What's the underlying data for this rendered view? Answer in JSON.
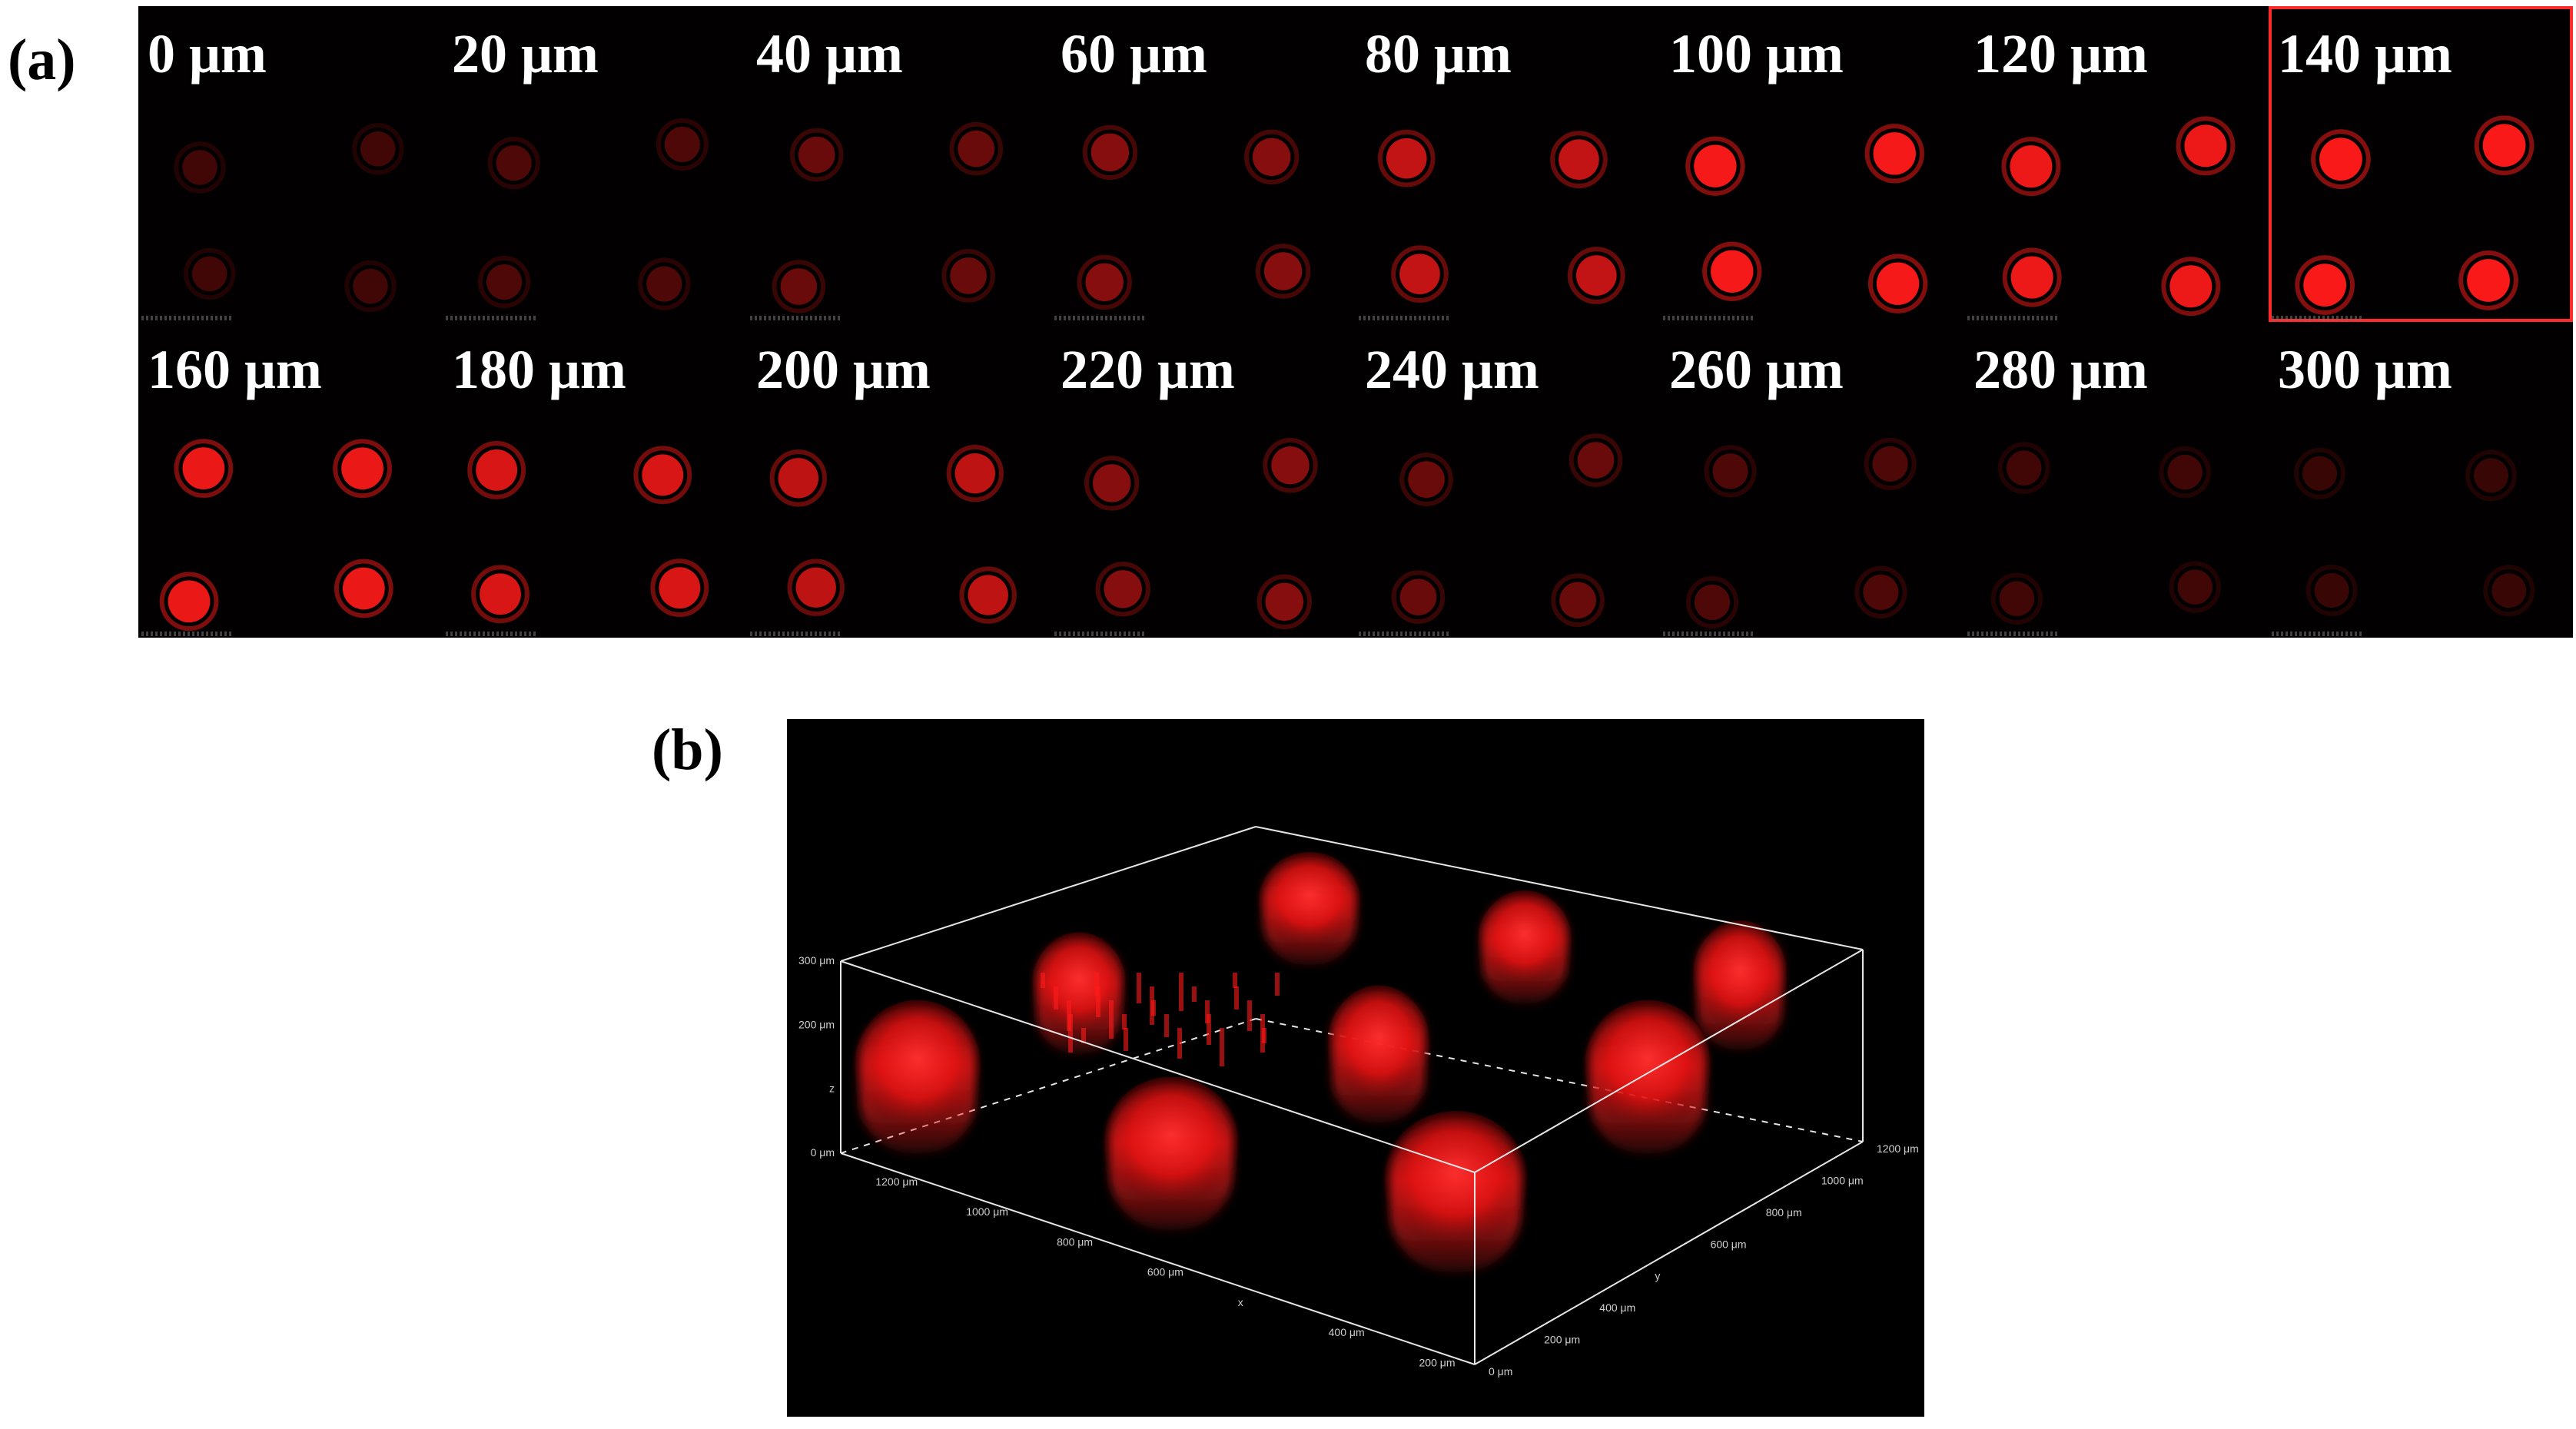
{
  "figure": {
    "panel_a_label": "(a)",
    "panel_b_label": "(b)"
  },
  "slices": [
    {
      "depth": "0 μm",
      "level": 0.12
    },
    {
      "depth": "20 μm",
      "level": 0.18
    },
    {
      "depth": "40 μm",
      "level": 0.3
    },
    {
      "depth": "60 μm",
      "level": 0.45
    },
    {
      "depth": "80 μm",
      "level": 0.72
    },
    {
      "depth": "100 μm",
      "level": 0.95
    },
    {
      "depth": "120 μm",
      "level": 0.92
    },
    {
      "depth": "140 μm",
      "level": 0.98,
      "highlighted": true
    },
    {
      "depth": "160 μm",
      "level": 0.9
    },
    {
      "depth": "180 μm",
      "level": 0.82
    },
    {
      "depth": "200 μm",
      "level": 0.7
    },
    {
      "depth": "220 μm",
      "level": 0.45
    },
    {
      "depth": "240 μm",
      "level": 0.3
    },
    {
      "depth": "260 μm",
      "level": 0.18
    },
    {
      "depth": "280 μm",
      "level": 0.12
    },
    {
      "depth": "300 μm",
      "level": 0.08
    }
  ],
  "render3d": {
    "z_ticks": [
      "300 μm",
      "200 μm",
      "z",
      "0 μm"
    ],
    "x_ticks": [
      "1200 μm",
      "1000 μm",
      "800 μm",
      "600 μm",
      "x",
      "400 μm",
      "200 μm"
    ],
    "y_ticks": [
      "0 μm",
      "200 μm",
      "400 μm",
      "y",
      "600 μm",
      "800 μm",
      "1000 μm",
      "1200 μm"
    ]
  },
  "colors": {
    "fluorescence": "#ff1a1a",
    "background": "#000000",
    "box_line": "#e6e6e6"
  }
}
